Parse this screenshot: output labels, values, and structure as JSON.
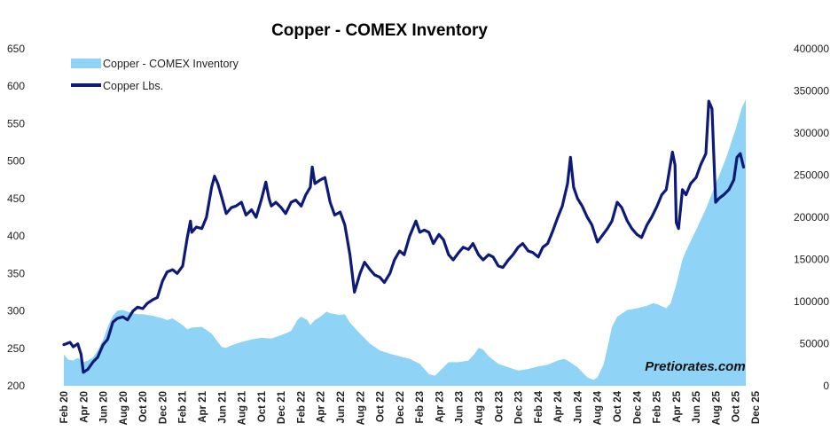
{
  "chart_data": {
    "type": "line",
    "title": "Copper - COMEX Inventory",
    "watermark": "Pretiorates.com",
    "x_ticks": [
      "Feb 20",
      "Apr 20",
      "Jun 20",
      "Aug 20",
      "Oct 20",
      "Dec 20",
      "Feb 21",
      "Apr 21",
      "Jun 21",
      "Aug 21",
      "Oct 21",
      "Dec 21",
      "Feb 22",
      "Apr 22",
      "Jun 22",
      "Aug 22",
      "Oct 22",
      "Dec 22",
      "Feb 23",
      "Apr 23",
      "Jun 23",
      "Aug 23",
      "Oct 23",
      "Dec 23",
      "Feb 24",
      "Apr 24",
      "Jun 24",
      "Aug 24",
      "Oct 24",
      "Dec 24",
      "Feb 25",
      "Apr 25",
      "Jun 25",
      "Aug 25",
      "Oct 25",
      "Dec 25"
    ],
    "y_left": {
      "min": 200,
      "max": 650,
      "step": 50,
      "ticks": [
        "200",
        "250",
        "300",
        "350",
        "400",
        "450",
        "500",
        "550",
        "600",
        "650"
      ]
    },
    "y_right": {
      "min": 0,
      "max": 400000,
      "step": 50000,
      "ticks": [
        "0",
        "50000",
        "100000",
        "150000",
        "200000",
        "250000",
        "300000",
        "350000",
        "400000"
      ]
    },
    "legend": {
      "placement": "top-left",
      "area_label": "Copper - COMEX Inventory",
      "line_label": "Copper Lbs."
    },
    "series": [
      {
        "name": "Copper - COMEX Inventory",
        "kind": "area",
        "axis": "right",
        "color": "#8fd3f6",
        "points": [
          [
            "2020-02-01",
            37000
          ],
          [
            "2020-02-15",
            31000
          ],
          [
            "2020-03-01",
            30000
          ],
          [
            "2020-03-15",
            33000
          ],
          [
            "2020-04-01",
            28000
          ],
          [
            "2020-04-15",
            30000
          ],
          [
            "2020-05-01",
            34000
          ],
          [
            "2020-05-15",
            42000
          ],
          [
            "2020-06-01",
            55000
          ],
          [
            "2020-06-15",
            70000
          ],
          [
            "2020-07-01",
            83000
          ],
          [
            "2020-07-15",
            89000
          ],
          [
            "2020-08-01",
            90000
          ],
          [
            "2020-08-15",
            88000
          ],
          [
            "2020-09-01",
            86000
          ],
          [
            "2020-09-15",
            85000
          ],
          [
            "2020-10-01",
            85000
          ],
          [
            "2020-11-01",
            83000
          ],
          [
            "2020-12-01",
            80000
          ],
          [
            "2020-12-15",
            78000
          ],
          [
            "2021-01-01",
            80000
          ],
          [
            "2021-02-01",
            72000
          ],
          [
            "2021-02-15",
            67000
          ],
          [
            "2021-03-01",
            69000
          ],
          [
            "2021-04-01",
            70000
          ],
          [
            "2021-05-01",
            62000
          ],
          [
            "2021-06-01",
            46000
          ],
          [
            "2021-06-15",
            45000
          ],
          [
            "2021-07-01",
            48000
          ],
          [
            "2021-08-01",
            52000
          ],
          [
            "2021-09-01",
            55000
          ],
          [
            "2021-10-01",
            57000
          ],
          [
            "2021-11-01",
            56000
          ],
          [
            "2021-12-01",
            60000
          ],
          [
            "2022-01-01",
            65000
          ],
          [
            "2022-01-20",
            78000
          ],
          [
            "2022-02-01",
            82000
          ],
          [
            "2022-02-20",
            78000
          ],
          [
            "2022-03-01",
            72000
          ],
          [
            "2022-03-15",
            78000
          ],
          [
            "2022-04-01",
            82000
          ],
          [
            "2022-04-20",
            88000
          ],
          [
            "2022-05-01",
            86000
          ],
          [
            "2022-06-01",
            84000
          ],
          [
            "2022-06-15",
            85000
          ],
          [
            "2022-07-01",
            75000
          ],
          [
            "2022-08-01",
            62000
          ],
          [
            "2022-09-01",
            50000
          ],
          [
            "2022-10-01",
            42000
          ],
          [
            "2022-11-01",
            38000
          ],
          [
            "2022-12-01",
            35000
          ],
          [
            "2023-01-01",
            32000
          ],
          [
            "2023-02-01",
            26000
          ],
          [
            "2023-03-01",
            14000
          ],
          [
            "2023-03-20",
            12000
          ],
          [
            "2023-04-15",
            22000
          ],
          [
            "2023-05-01",
            28000
          ],
          [
            "2023-06-01",
            28000
          ],
          [
            "2023-07-01",
            30000
          ],
          [
            "2023-07-20",
            38000
          ],
          [
            "2023-08-01",
            45000
          ],
          [
            "2023-08-15",
            43000
          ],
          [
            "2023-09-01",
            35000
          ],
          [
            "2023-10-01",
            26000
          ],
          [
            "2023-11-01",
            22000
          ],
          [
            "2023-12-01",
            18000
          ],
          [
            "2024-01-01",
            20000
          ],
          [
            "2024-02-01",
            23000
          ],
          [
            "2024-03-01",
            25000
          ],
          [
            "2024-04-01",
            30000
          ],
          [
            "2024-04-20",
            32000
          ],
          [
            "2024-05-01",
            30000
          ],
          [
            "2024-06-01",
            22000
          ],
          [
            "2024-07-01",
            10000
          ],
          [
            "2024-07-20",
            7000
          ],
          [
            "2024-08-01",
            10000
          ],
          [
            "2024-08-20",
            25000
          ],
          [
            "2024-09-01",
            45000
          ],
          [
            "2024-09-15",
            70000
          ],
          [
            "2024-10-01",
            82000
          ],
          [
            "2024-11-01",
            90000
          ],
          [
            "2024-12-01",
            92000
          ],
          [
            "2025-01-01",
            95000
          ],
          [
            "2025-01-20",
            98000
          ],
          [
            "2025-02-01",
            97000
          ],
          [
            "2025-03-01",
            92000
          ],
          [
            "2025-03-15",
            98000
          ],
          [
            "2025-04-01",
            120000
          ],
          [
            "2025-04-20",
            150000
          ],
          [
            "2025-05-01",
            160000
          ],
          [
            "2025-06-01",
            185000
          ],
          [
            "2025-07-01",
            210000
          ],
          [
            "2025-08-01",
            240000
          ],
          [
            "2025-09-01",
            270000
          ],
          [
            "2025-10-01",
            305000
          ],
          [
            "2025-10-20",
            330000
          ],
          [
            "2025-11-01",
            340000
          ]
        ]
      },
      {
        "name": "Copper Lbs.",
        "kind": "line",
        "axis": "left",
        "color": "#0d1a78",
        "points": [
          [
            "2020-02-01",
            255
          ],
          [
            "2020-02-20",
            258
          ],
          [
            "2020-03-01",
            252
          ],
          [
            "2020-03-15",
            256
          ],
          [
            "2020-03-25",
            242
          ],
          [
            "2020-04-01",
            218
          ],
          [
            "2020-04-15",
            222
          ],
          [
            "2020-05-01",
            232
          ],
          [
            "2020-05-15",
            238
          ],
          [
            "2020-06-01",
            255
          ],
          [
            "2020-06-15",
            262
          ],
          [
            "2020-07-01",
            285
          ],
          [
            "2020-07-15",
            290
          ],
          [
            "2020-08-01",
            292
          ],
          [
            "2020-08-15",
            288
          ],
          [
            "2020-09-01",
            300
          ],
          [
            "2020-09-15",
            305
          ],
          [
            "2020-10-01",
            303
          ],
          [
            "2020-10-15",
            310
          ],
          [
            "2020-11-01",
            315
          ],
          [
            "2020-11-15",
            318
          ],
          [
            "2020-12-01",
            340
          ],
          [
            "2020-12-15",
            352
          ],
          [
            "2021-01-01",
            355
          ],
          [
            "2021-01-15",
            350
          ],
          [
            "2021-02-01",
            360
          ],
          [
            "2021-02-15",
            398
          ],
          [
            "2021-02-25",
            420
          ],
          [
            "2021-03-01",
            405
          ],
          [
            "2021-03-15",
            412
          ],
          [
            "2021-04-01",
            410
          ],
          [
            "2021-04-15",
            425
          ],
          [
            "2021-05-01",
            465
          ],
          [
            "2021-05-10",
            480
          ],
          [
            "2021-05-20",
            470
          ],
          [
            "2021-06-01",
            452
          ],
          [
            "2021-06-15",
            430
          ],
          [
            "2021-07-01",
            438
          ],
          [
            "2021-07-15",
            440
          ],
          [
            "2021-08-01",
            445
          ],
          [
            "2021-08-15",
            428
          ],
          [
            "2021-09-01",
            435
          ],
          [
            "2021-09-15",
            425
          ],
          [
            "2021-10-01",
            448
          ],
          [
            "2021-10-15",
            472
          ],
          [
            "2021-10-25",
            450
          ],
          [
            "2021-11-01",
            440
          ],
          [
            "2021-11-15",
            445
          ],
          [
            "2021-12-01",
            438
          ],
          [
            "2021-12-15",
            430
          ],
          [
            "2022-01-01",
            445
          ],
          [
            "2022-01-15",
            448
          ],
          [
            "2022-02-01",
            440
          ],
          [
            "2022-02-15",
            455
          ],
          [
            "2022-03-01",
            465
          ],
          [
            "2022-03-07",
            492
          ],
          [
            "2022-03-15",
            470
          ],
          [
            "2022-04-01",
            475
          ],
          [
            "2022-04-15",
            478
          ],
          [
            "2022-05-01",
            445
          ],
          [
            "2022-05-15",
            428
          ],
          [
            "2022-06-01",
            432
          ],
          [
            "2022-06-15",
            415
          ],
          [
            "2022-07-01",
            375
          ],
          [
            "2022-07-15",
            325
          ],
          [
            "2022-08-01",
            350
          ],
          [
            "2022-08-15",
            365
          ],
          [
            "2022-09-01",
            355
          ],
          [
            "2022-09-15",
            348
          ],
          [
            "2022-10-01",
            345
          ],
          [
            "2022-10-15",
            338
          ],
          [
            "2022-11-01",
            350
          ],
          [
            "2022-11-15",
            368
          ],
          [
            "2022-12-01",
            380
          ],
          [
            "2022-12-15",
            375
          ],
          [
            "2023-01-01",
            400
          ],
          [
            "2023-01-20",
            420
          ],
          [
            "2023-02-01",
            405
          ],
          [
            "2023-02-15",
            408
          ],
          [
            "2023-03-01",
            405
          ],
          [
            "2023-03-15",
            390
          ],
          [
            "2023-04-01",
            402
          ],
          [
            "2023-04-15",
            395
          ],
          [
            "2023-05-01",
            375
          ],
          [
            "2023-05-15",
            368
          ],
          [
            "2023-06-01",
            378
          ],
          [
            "2023-06-15",
            385
          ],
          [
            "2023-07-01",
            382
          ],
          [
            "2023-07-15",
            390
          ],
          [
            "2023-08-01",
            375
          ],
          [
            "2023-08-15",
            368
          ],
          [
            "2023-09-01",
            375
          ],
          [
            "2023-09-15",
            372
          ],
          [
            "2023-10-01",
            360
          ],
          [
            "2023-10-15",
            358
          ],
          [
            "2023-11-01",
            368
          ],
          [
            "2023-11-15",
            375
          ],
          [
            "2023-12-01",
            385
          ],
          [
            "2023-12-15",
            390
          ],
          [
            "2024-01-01",
            380
          ],
          [
            "2024-01-15",
            378
          ],
          [
            "2024-02-01",
            372
          ],
          [
            "2024-02-15",
            385
          ],
          [
            "2024-03-01",
            390
          ],
          [
            "2024-03-15",
            405
          ],
          [
            "2024-04-01",
            425
          ],
          [
            "2024-04-15",
            440
          ],
          [
            "2024-05-01",
            470
          ],
          [
            "2024-05-10",
            505
          ],
          [
            "2024-05-20",
            465
          ],
          [
            "2024-06-01",
            450
          ],
          [
            "2024-06-15",
            440
          ],
          [
            "2024-07-01",
            425
          ],
          [
            "2024-07-15",
            415
          ],
          [
            "2024-08-01",
            392
          ],
          [
            "2024-08-15",
            400
          ],
          [
            "2024-09-01",
            410
          ],
          [
            "2024-09-15",
            420
          ],
          [
            "2024-10-01",
            445
          ],
          [
            "2024-10-15",
            438
          ],
          [
            "2024-11-01",
            420
          ],
          [
            "2024-11-15",
            410
          ],
          [
            "2024-12-01",
            402
          ],
          [
            "2024-12-15",
            398
          ],
          [
            "2025-01-01",
            415
          ],
          [
            "2025-01-15",
            425
          ],
          [
            "2025-02-01",
            440
          ],
          [
            "2025-02-15",
            455
          ],
          [
            "2025-03-01",
            462
          ],
          [
            "2025-03-20",
            512
          ],
          [
            "2025-03-28",
            495
          ],
          [
            "2025-04-01",
            418
          ],
          [
            "2025-04-08",
            410
          ],
          [
            "2025-04-20",
            462
          ],
          [
            "2025-05-01",
            455
          ],
          [
            "2025-05-15",
            470
          ],
          [
            "2025-06-01",
            478
          ],
          [
            "2025-06-15",
            495
          ],
          [
            "2025-07-01",
            510
          ],
          [
            "2025-07-10",
            580
          ],
          [
            "2025-07-20",
            570
          ],
          [
            "2025-07-31",
            445
          ],
          [
            "2025-08-10",
            450
          ],
          [
            "2025-08-25",
            455
          ],
          [
            "2025-09-10",
            462
          ],
          [
            "2025-09-25",
            475
          ],
          [
            "2025-10-05",
            505
          ],
          [
            "2025-10-15",
            510
          ],
          [
            "2025-10-25",
            492
          ]
        ]
      }
    ]
  }
}
